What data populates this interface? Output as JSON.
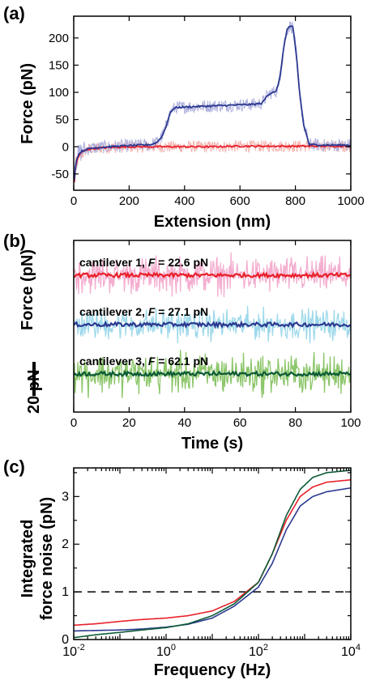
{
  "chart_data": [
    {
      "panel": "(a)",
      "type": "line",
      "xlabel": "Extension (nm)",
      "ylabel": "Force (pN)",
      "xlim": [
        0,
        1000
      ],
      "ylim": [
        -80,
        240
      ],
      "xticks": [
        "0",
        "200",
        "400",
        "600",
        "800",
        "1000"
      ],
      "yticks": [
        "-50",
        "0",
        "50",
        "100",
        "150",
        "200"
      ],
      "xtick_values": [
        0,
        200,
        400,
        600,
        800,
        1000
      ],
      "ytick_values": [
        -50,
        0,
        50,
        100,
        150,
        200
      ],
      "grid": false,
      "series": [
        {
          "color": "#2b3990",
          "band_color": "#aeb1dd",
          "band_halfwidth": 12,
          "x": [
            2,
            6,
            12,
            20,
            30,
            45,
            60,
            80,
            100,
            130,
            160,
            200,
            240,
            280,
            300,
            320,
            335,
            345,
            355,
            370,
            400,
            450,
            500,
            550,
            600,
            650,
            680,
            700,
            715,
            730,
            740,
            750,
            760,
            770,
            780,
            790,
            795,
            805,
            815,
            830,
            850,
            900,
            950,
            1000
          ],
          "y": [
            -60,
            -35,
            -20,
            -12,
            -8,
            -5,
            -3,
            -2,
            -1,
            0,
            1,
            2,
            3,
            4,
            8,
            20,
            40,
            58,
            68,
            72,
            73,
            74,
            75,
            76,
            77,
            78,
            80,
            95,
            100,
            102,
            115,
            150,
            190,
            215,
            222,
            220,
            205,
            160,
            100,
            40,
            4,
            3,
            3,
            3
          ]
        },
        {
          "color": "#e8202a",
          "band_color": "#f5b3b0",
          "band_halfwidth": 11,
          "x": [
            2,
            6,
            12,
            20,
            30,
            45,
            60,
            80,
            100,
            150,
            200,
            300,
            400,
            500,
            600,
            700,
            800,
            900,
            1000
          ],
          "y": [
            -65,
            -40,
            -25,
            -15,
            -10,
            -6,
            -4,
            -3,
            -2,
            -1,
            0,
            0,
            0,
            0,
            1,
            1,
            1,
            1,
            1
          ]
        }
      ]
    },
    {
      "panel": "(b)",
      "type": "line",
      "xlabel": "Time (s)",
      "ylabel": "Force (pN)",
      "scale_bar": "20 pN",
      "xlim": [
        0,
        100
      ],
      "xticks": [
        "0",
        "20",
        "40",
        "60",
        "80",
        "100"
      ],
      "xtick_values": [
        0,
        20,
        40,
        60,
        80,
        100
      ],
      "grid": false,
      "series": [
        {
          "label_prefix": "cantilever 1, ",
          "label_var": "F",
          "label_value": " = 22.6 pN",
          "color": "#e8202a",
          "band_color": "#f4aed0",
          "noise_pN": 12,
          "offset_pN": 0
        },
        {
          "label_prefix": "cantilever 2, ",
          "label_var": "F",
          "label_value": " = 27.1 pN",
          "color": "#2b3990",
          "band_color": "#9ed9eb",
          "noise_pN": 10,
          "offset_pN": -29
        },
        {
          "label_prefix": "cantilever 3, ",
          "label_var": "F",
          "label_value": " = 62.1 pN",
          "color": "#0b5a36",
          "band_color": "#8cc66a",
          "noise_pN": 13,
          "offset_pN": -58
        }
      ]
    },
    {
      "panel": "(c)",
      "type": "line",
      "xlabel": "Frequency (Hz)",
      "ylabel": [
        "Integrated",
        "force noise (pN)"
      ],
      "xscale": "log",
      "xlim": [
        0.01,
        10000
      ],
      "ylim": [
        0,
        3.6
      ],
      "yticks": [
        "0",
        "1",
        "2",
        "3"
      ],
      "ytick_values": [
        0,
        1,
        2,
        3
      ],
      "xticks": [
        {
          "base": "10",
          "exp": "-2",
          "value": 0.01
        },
        {
          "base": "10",
          "exp": "0",
          "value": 1
        },
        {
          "base": "10",
          "exp": "2",
          "value": 100
        },
        {
          "base": "10",
          "exp": "4",
          "value": 10000
        }
      ],
      "reference_line": {
        "y": 1,
        "style": "dashed"
      },
      "grid": false,
      "series": [
        {
          "color": "#e8202a",
          "x": [
            0.01,
            0.03,
            0.1,
            0.3,
            1,
            3,
            10,
            30,
            100,
            200,
            400,
            800,
            1500,
            3000,
            10000
          ],
          "y": [
            0.3,
            0.33,
            0.38,
            0.42,
            0.45,
            0.5,
            0.6,
            0.8,
            1.2,
            1.8,
            2.5,
            3.0,
            3.2,
            3.3,
            3.35
          ]
        },
        {
          "color": "#2b3990",
          "x": [
            0.01,
            0.03,
            0.1,
            0.3,
            1,
            3,
            10,
            30,
            100,
            200,
            400,
            800,
            1500,
            3000,
            10000
          ],
          "y": [
            0.18,
            0.19,
            0.2,
            0.22,
            0.26,
            0.32,
            0.45,
            0.7,
            1.1,
            1.6,
            2.3,
            2.8,
            3.0,
            3.1,
            3.18
          ]
        },
        {
          "color": "#0b5a36",
          "x": [
            0.01,
            0.03,
            0.1,
            0.3,
            1,
            3,
            10,
            30,
            100,
            200,
            400,
            800,
            1500,
            3000,
            10000
          ],
          "y": [
            0.04,
            0.1,
            0.15,
            0.2,
            0.25,
            0.33,
            0.5,
            0.75,
            1.2,
            1.8,
            2.6,
            3.15,
            3.4,
            3.5,
            3.55
          ]
        }
      ]
    }
  ]
}
